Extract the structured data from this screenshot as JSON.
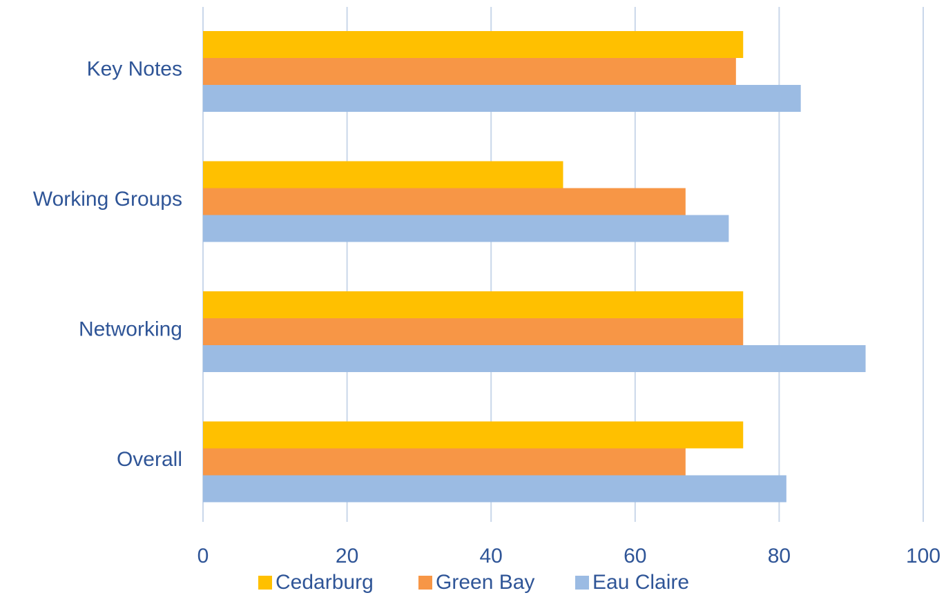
{
  "chart_data": {
    "type": "bar",
    "orientation": "horizontal",
    "title": "",
    "xlabel": "",
    "ylabel": "",
    "categories": [
      "Key Notes",
      "Working Groups",
      "Networking",
      "Overall"
    ],
    "series": [
      {
        "name": "Cedarburg",
        "color": "#FFC000",
        "values": [
          75,
          50,
          75,
          75
        ]
      },
      {
        "name": "Green Bay",
        "color": "#F79646",
        "values": [
          74,
          67,
          75,
          67
        ]
      },
      {
        "name": "Eau Claire",
        "color": "#9BBBE3",
        "values": [
          83,
          73,
          92,
          81
        ]
      }
    ],
    "xlim": [
      0,
      100
    ],
    "xticks": [
      0,
      20,
      40,
      60,
      80,
      100
    ],
    "xtick_labels": [
      "0",
      "20",
      "40",
      "60",
      "80",
      "100"
    ],
    "grid": "vertical",
    "legend": "bottom",
    "text_color": "#2F5597",
    "grid_color": "#C9D7EA"
  }
}
